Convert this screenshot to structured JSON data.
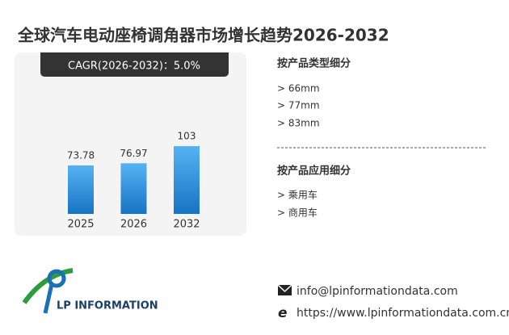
{
  "chart_data": {
    "type": "bar",
    "title": "全球汽车电动座椅调角器市场增长趋势2026-2032",
    "annotation": "CAGR(2026-2032)：5.0%",
    "categories": [
      "2025",
      "2026",
      "2032"
    ],
    "values": [
      73.78,
      76.97,
      103
    ],
    "color": "#2b8ede"
  },
  "sidebar": {
    "product_type": {
      "heading": "按产品类型细分",
      "items": [
        "> 66mm",
        "> 77mm",
        "> 83mm"
      ]
    },
    "application": {
      "heading": "按产品应用细分",
      "items": [
        "> 乘用车",
        "> 商用车"
      ]
    }
  },
  "contact": {
    "email": "info@lpinformationdata.com",
    "website": "https://www.lpinformationdata.com.cn"
  },
  "logo": {
    "text": "LP INFORMATION"
  }
}
